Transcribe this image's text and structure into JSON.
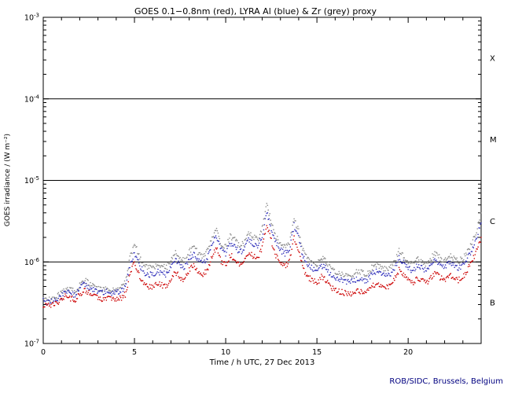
{
  "chart_data": {
    "type": "scatter",
    "title": "GOES 0.1−0.8nm (red), LYRA Al (blue) & Zr (grey) proxy",
    "xlabel": "Time / h UTC, 27 Dec 2013",
    "ylabel": "GOES irradiance / (W m⁻²)",
    "credit": "ROB/SIDC, Brussels, Belgium",
    "credit_color": "#000080",
    "axis_color": "#000000",
    "grid": "off",
    "legend_position": "none (colors named in title)",
    "xlim": [
      0,
      24
    ],
    "x_major_ticks": [
      0,
      5,
      10,
      15,
      20
    ],
    "x_minor_step": 1,
    "y_scale": "log",
    "y_exp_range": [
      -7,
      -3
    ],
    "y_tick_exponents": [
      -3,
      -4,
      -5,
      -6,
      -7
    ],
    "hline_exponents": [
      -4,
      -5,
      -6
    ],
    "flux_class_labels": [
      {
        "label": "X",
        "exp": -3.5
      },
      {
        "label": "M",
        "exp": -4.5
      },
      {
        "label": "C",
        "exp": -5.5
      },
      {
        "label": "B",
        "exp": -6.5
      }
    ],
    "value_unit": "1e-7 W m-2",
    "x_start": 0,
    "x_step": 0.25,
    "series": [
      {
        "name": "GOES 0.1-0.8nm (red)",
        "color": "#cc0000",
        "values": [
          3.0,
          2.9,
          3.0,
          3.2,
          3.4,
          3.9,
          3.6,
          3.4,
          4.0,
          4.6,
          4.2,
          3.8,
          3.6,
          3.5,
          3.6,
          3.5,
          3.5,
          3.6,
          4.0,
          7.0,
          10.0,
          7.0,
          5.5,
          5.0,
          5.0,
          5.5,
          5.2,
          5.0,
          6.0,
          7.5,
          6.5,
          6.0,
          8.0,
          9.0,
          7.5,
          7.0,
          8.0,
          12.0,
          15.0,
          10.0,
          9.0,
          12.0,
          11.0,
          9.5,
          10.0,
          13.0,
          12.0,
          11.0,
          15.0,
          30.0,
          18.0,
          12.0,
          10.0,
          9.0,
          10.0,
          20.0,
          14.0,
          8.0,
          6.5,
          6.0,
          5.5,
          6.5,
          6.0,
          5.0,
          4.5,
          4.3,
          4.2,
          4.0,
          4.2,
          4.5,
          4.3,
          4.2,
          5.0,
          5.5,
          5.0,
          4.8,
          5.0,
          6.0,
          8.0,
          7.0,
          6.0,
          5.5,
          6.5,
          6.0,
          5.5,
          6.5,
          7.5,
          6.5,
          6.0,
          7.0,
          6.5,
          6.0,
          6.5,
          8.0,
          10.0,
          14.0,
          20.0
        ]
      },
      {
        "name": "LYRA Al proxy (blue)",
        "color": "#3333bb",
        "values": [
          3.3,
          3.2,
          3.3,
          3.5,
          3.8,
          4.4,
          4.1,
          3.9,
          4.6,
          5.4,
          5.0,
          4.5,
          4.3,
          4.2,
          4.3,
          4.2,
          4.3,
          4.4,
          5.0,
          9.0,
          13.0,
          9.5,
          7.5,
          7.0,
          7.0,
          7.6,
          7.3,
          7.0,
          8.4,
          10.5,
          9.1,
          8.4,
          11.2,
          12.6,
          10.5,
          9.8,
          11.2,
          17.0,
          21.0,
          14.0,
          12.6,
          17.0,
          15.4,
          13.3,
          14.0,
          18.2,
          17.0,
          15.4,
          21.0,
          42.0,
          25.0,
          17.0,
          14.0,
          12.6,
          14.0,
          28.0,
          20.0,
          11.2,
          9.1,
          8.4,
          7.7,
          9.1,
          8.4,
          7.0,
          6.3,
          6.0,
          5.9,
          5.6,
          5.9,
          6.3,
          6.0,
          5.9,
          7.0,
          7.7,
          7.0,
          6.7,
          7.0,
          8.4,
          11.2,
          9.8,
          8.4,
          7.7,
          9.1,
          8.4,
          7.7,
          9.1,
          10.5,
          9.1,
          8.4,
          9.8,
          9.1,
          8.4,
          9.1,
          11.2,
          14.0,
          20.0,
          30.0
        ]
      },
      {
        "name": "LYRA Zr proxy (grey)",
        "color": "#8a8a8a",
        "values": [
          3.5,
          3.4,
          3.5,
          3.8,
          4.2,
          4.9,
          4.5,
          4.3,
          5.2,
          6.0,
          5.5,
          5.0,
          4.7,
          4.6,
          4.7,
          4.6,
          4.7,
          4.8,
          5.6,
          11.0,
          17.0,
          12.0,
          9.4,
          8.5,
          8.5,
          9.4,
          8.8,
          8.5,
          10.2,
          12.8,
          11.1,
          10.2,
          13.6,
          15.3,
          12.8,
          11.9,
          13.6,
          20.4,
          25.5,
          17.0,
          15.3,
          20.4,
          18.7,
          16.2,
          17.0,
          22.1,
          20.4,
          18.7,
          25.5,
          51.0,
          30.6,
          20.4,
          17.0,
          15.3,
          17.0,
          34.0,
          24.0,
          13.6,
          11.1,
          10.2,
          9.4,
          11.1,
          10.2,
          8.5,
          7.7,
          7.3,
          7.1,
          6.8,
          7.1,
          7.7,
          7.3,
          7.1,
          8.5,
          9.4,
          8.5,
          8.2,
          8.5,
          10.2,
          13.6,
          11.9,
          10.2,
          9.4,
          11.1,
          10.2,
          9.4,
          11.1,
          12.8,
          11.1,
          10.2,
          11.9,
          11.1,
          10.2,
          11.1,
          13.6,
          17.0,
          24.0,
          40.0
        ]
      }
    ]
  }
}
